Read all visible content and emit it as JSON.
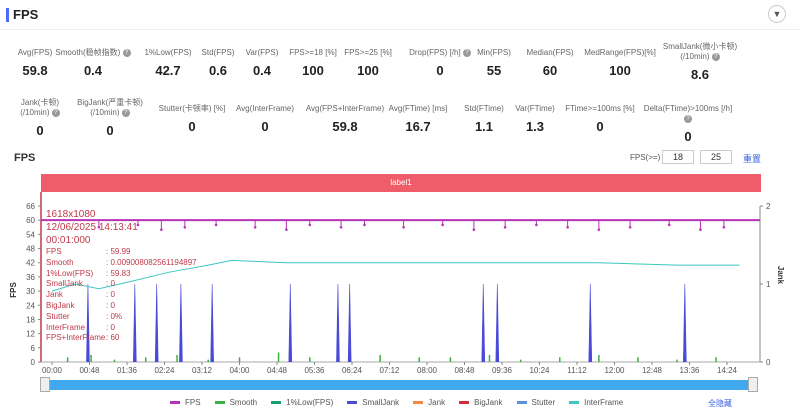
{
  "header": {
    "title": "FPS",
    "collapse_icon": "chevron-down-icon"
  },
  "stats_row1": [
    {
      "label": "Avg(FPS)",
      "value": "59.8",
      "help": false
    },
    {
      "label": "Smooth(稳帧指数)",
      "value": "0.4",
      "help": true
    },
    {
      "label": "1%Low(FPS)",
      "value": "42.7",
      "help": false
    },
    {
      "label": "Std(FPS)",
      "value": "0.6",
      "help": false
    },
    {
      "label": "Var(FPS)",
      "value": "0.4",
      "help": false
    },
    {
      "label": "FPS>=18 [%]",
      "value": "100",
      "help": false
    },
    {
      "label": "FPS>=25 [%]",
      "value": "100",
      "help": false
    },
    {
      "label": "Drop(FPS) [/h]",
      "value": "0",
      "help": true
    },
    {
      "label": "Min(FPS)",
      "value": "55",
      "help": false
    },
    {
      "label": "Median(FPS)",
      "value": "60",
      "help": false
    },
    {
      "label": "MedRange(FPS)[%]",
      "value": "100",
      "help": false
    },
    {
      "label": "SmallJank(微小卡顿)",
      "label2": "(/10min)",
      "value": "8.6",
      "help": true
    }
  ],
  "stats_row2": [
    {
      "label": "Jank(卡顿)",
      "label2": "(/10min)",
      "value": "0",
      "help": true
    },
    {
      "label": "BigJank(严重卡顿)",
      "label2": "(/10min)",
      "value": "0",
      "help": true
    },
    {
      "label": "Stutter(卡顿率) [%]",
      "value": "0",
      "help": false
    },
    {
      "label": "Avg(InterFrame)",
      "value": "0",
      "help": false
    },
    {
      "label": "Avg(FPS+InterFrame)",
      "value": "59.8",
      "help": false
    },
    {
      "label": "Avg(FTime) [ms]",
      "value": "16.7",
      "help": false
    },
    {
      "label": "Std(FTime)",
      "value": "1.1",
      "help": false
    },
    {
      "label": "Var(FTime)",
      "value": "1.3",
      "help": false
    },
    {
      "label": "FTime>=100ms [%]",
      "value": "0",
      "help": false
    },
    {
      "label": "Delta(FTime)>100ms [/h]",
      "value": "0",
      "help": true
    }
  ],
  "chart_section": {
    "title": "FPS",
    "fps_threshold_label": "FPS(>=)",
    "threshold1": "18",
    "threshold2": "25",
    "reset_label": "重置",
    "label_bar": "label1",
    "hide_all_label": "全隐藏"
  },
  "tooltip": {
    "resolution": "1618x1080",
    "datetime": "12/06/2025 14:13:41",
    "elapsed": "00:01:000",
    "rows": [
      [
        "FPS",
        ": 59.99"
      ],
      [
        "Smooth",
        ": 0.009008082561194897"
      ],
      [
        "1%Low(FPS)",
        ": 59.83"
      ],
      [
        "SmallJank",
        ": 0"
      ],
      [
        "Jank",
        ": 0"
      ],
      [
        "BigJank",
        ": 0"
      ],
      [
        "Stutter",
        ": 0%"
      ],
      [
        "InterFrame",
        ": 0"
      ],
      [
        "FPS+InterFrame",
        ": 60"
      ]
    ]
  },
  "chart_data": {
    "type": "line",
    "ylabel": "FPS",
    "y2label": "Jank",
    "ylim": [
      0,
      66
    ],
    "yticks": [
      0,
      6,
      12,
      18,
      24,
      30,
      36,
      42,
      48,
      54,
      60,
      66
    ],
    "y2lim": [
      0,
      2
    ],
    "y2ticks": [
      0,
      1,
      2
    ],
    "xticks": [
      "00:00",
      "00:48",
      "01:36",
      "02:24",
      "03:12",
      "04:00",
      "04:48",
      "05:36",
      "06:24",
      "07:12",
      "08:00",
      "08:48",
      "09:36",
      "10:24",
      "11:12",
      "12:00",
      "12:48",
      "13:36",
      "14:24"
    ],
    "xlim_seconds": [
      0,
      880
    ],
    "colors": {
      "FPS": "#b832b8",
      "Smooth": "#3cb043",
      "1%Low(FPS)": "#1a9e6e",
      "SmallJank": "#4a4ad8",
      "Jank": "#f08a3c",
      "BigJank": "#d8283c",
      "Stutter": "#5b8fe0",
      "InterFrame": "#3cc8c0"
    },
    "series": [
      {
        "name": "FPS",
        "baseline": 60,
        "dips": [
          [
            60,
            57
          ],
          [
            110,
            58
          ],
          [
            140,
            56
          ],
          [
            170,
            57
          ],
          [
            210,
            58
          ],
          [
            260,
            57
          ],
          [
            300,
            56
          ],
          [
            330,
            58
          ],
          [
            370,
            57
          ],
          [
            400,
            58
          ],
          [
            450,
            57
          ],
          [
            500,
            58
          ],
          [
            540,
            56
          ],
          [
            580,
            57
          ],
          [
            620,
            58
          ],
          [
            660,
            57
          ],
          [
            700,
            56
          ],
          [
            740,
            57
          ],
          [
            790,
            58
          ],
          [
            830,
            56
          ],
          [
            860,
            57
          ]
        ]
      },
      {
        "name": "Smooth",
        "x": [
          20,
          50,
          80,
          120,
          160,
          200,
          240,
          290,
          330,
          380,
          420,
          470,
          510,
          560,
          600,
          650,
          700,
          750,
          800,
          850
        ],
        "y": [
          2,
          3,
          1,
          2,
          3,
          1,
          2,
          4,
          2,
          1,
          3,
          2,
          2,
          3,
          1,
          2,
          3,
          2,
          1,
          2
        ]
      },
      {
        "name": "1%Low(FPS)",
        "x": [
          0,
          30,
          60,
          100,
          150,
          200,
          230,
          300,
          400,
          500,
          600,
          700,
          800,
          880
        ],
        "y": [
          30,
          33,
          31,
          34,
          38,
          41,
          43,
          42,
          42,
          42,
          42,
          42,
          41,
          41
        ]
      },
      {
        "name": "SmallJank",
        "axis": "right",
        "x": [
          46,
          106,
          134,
          165,
          205,
          305,
          366,
          381,
          552,
          570,
          689,
          810
        ],
        "y": [
          1,
          1,
          1,
          1,
          1,
          1,
          1,
          1,
          1,
          1,
          1,
          1
        ]
      },
      {
        "name": "Jank",
        "axis": "right",
        "values": []
      },
      {
        "name": "BigJank",
        "axis": "right",
        "values": []
      },
      {
        "name": "Stutter",
        "values": []
      },
      {
        "name": "InterFrame",
        "values": []
      }
    ],
    "legend": [
      "FPS",
      "Smooth",
      "1%Low(FPS)",
      "SmallJank",
      "Jank",
      "BigJank",
      "Stutter",
      "InterFrame"
    ],
    "legend_position": "bottom"
  }
}
